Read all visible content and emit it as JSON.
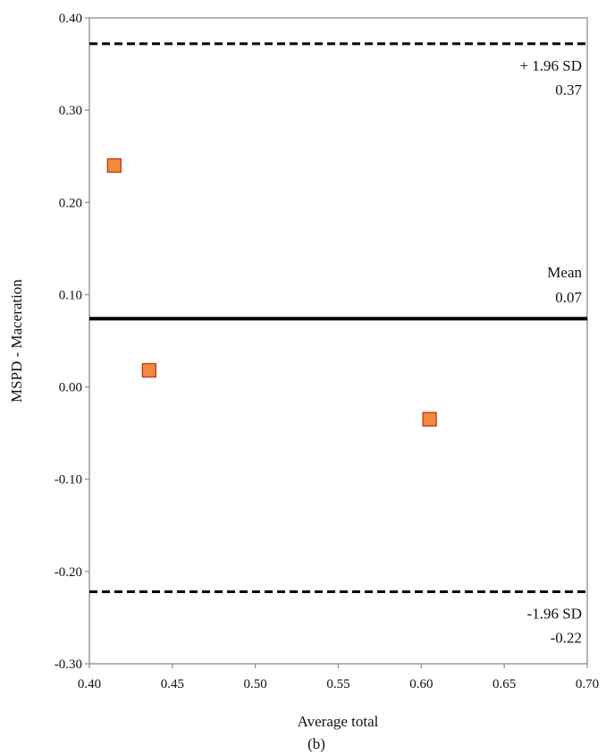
{
  "chart_data": {
    "type": "scatter",
    "title": "",
    "xlabel": "Average total",
    "ylabel": "MSPD - Maceration",
    "caption": "(b)",
    "xlim": [
      0.4,
      0.7
    ],
    "ylim": [
      -0.3,
      0.4
    ],
    "x_ticks": [
      "0.40",
      "0.45",
      "0.50",
      "0.55",
      "0.60",
      "0.65",
      "0.70"
    ],
    "y_ticks": [
      "-0.30",
      "-0.20",
      "-0.10",
      "0.00",
      "0.10",
      "0.20",
      "0.30",
      "0.40"
    ],
    "grid": false,
    "legend": "none",
    "series": [
      {
        "points": [
          {
            "x": 0.415,
            "y": 0.24
          },
          {
            "x": 0.436,
            "y": 0.018
          },
          {
            "x": 0.605,
            "y": -0.035
          }
        ],
        "marker": "square",
        "color": "#f08a3c",
        "edge_color": "#c8321e"
      }
    ],
    "reference_lines": [
      {
        "id": "upper",
        "y": 0.372,
        "style": "dashed",
        "label": "+ 1.96 SD",
        "value_label": "0.37"
      },
      {
        "id": "mean",
        "y": 0.074,
        "style": "solid",
        "label": "Mean",
        "value_label": "0.07"
      },
      {
        "id": "lower",
        "y": -0.222,
        "style": "dashed",
        "label": "-1.96 SD",
        "value_label": "-0.22"
      }
    ]
  }
}
